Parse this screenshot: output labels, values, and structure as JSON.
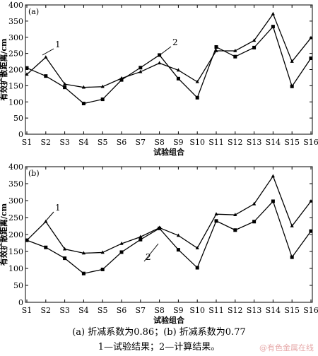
{
  "figure": {
    "caption_line1": "(a) 折减系数为0.86；(b) 折减系数为0.77",
    "caption_line2": "1—试验结果；2—计算结果。",
    "watermark": "@有色金属在线"
  },
  "chart_data": [
    {
      "type": "line",
      "panel_label": "(a)",
      "xlabel": "试验组合",
      "ylabel": "有效扩散距离/cm",
      "ylim": [
        0,
        400
      ],
      "yticks": [
        0,
        50,
        100,
        150,
        200,
        250,
        300,
        350,
        400
      ],
      "categories": [
        "S1",
        "S2",
        "S3",
        "S4",
        "S5",
        "S6",
        "S7",
        "S8",
        "S9",
        "S10",
        "S11",
        "S12",
        "S13",
        "S14",
        "S15",
        "S16"
      ],
      "grid": false,
      "series": [
        {
          "name": "1",
          "marker": "triangle",
          "values": [
            185,
            238,
            155,
            145,
            147,
            173,
            193,
            220,
            198,
            162,
            258,
            258,
            290,
            372,
            225,
            298
          ]
        },
        {
          "name": "2",
          "marker": "square",
          "values": [
            205,
            180,
            145,
            95,
            108,
            168,
            206,
            245,
            172,
            113,
            270,
            240,
            268,
            333,
            148,
            235
          ]
        }
      ],
      "series_labels": [
        "1",
        "2"
      ]
    },
    {
      "type": "line",
      "panel_label": "(b)",
      "xlabel": "试验组合",
      "ylabel": "有效扩散距离/cm",
      "ylim": [
        0,
        400
      ],
      "yticks": [
        0,
        50,
        100,
        150,
        200,
        250,
        300,
        350,
        400
      ],
      "categories": [
        "S1",
        "S2",
        "S3",
        "S4",
        "S5",
        "S6",
        "S7",
        "S8",
        "S9",
        "S10",
        "S11",
        "S12",
        "S13",
        "S14",
        "S15",
        "S16"
      ],
      "grid": false,
      "series": [
        {
          "name": "1",
          "marker": "triangle",
          "values": [
            183,
            238,
            157,
            145,
            147,
            173,
            193,
            220,
            197,
            160,
            260,
            258,
            290,
            372,
            225,
            298
          ]
        },
        {
          "name": "2",
          "marker": "square",
          "values": [
            183,
            162,
            130,
            85,
            97,
            148,
            185,
            218,
            155,
            102,
            240,
            213,
            238,
            298,
            133,
            210
          ]
        }
      ],
      "series_labels": [
        "1",
        "2"
      ]
    }
  ]
}
